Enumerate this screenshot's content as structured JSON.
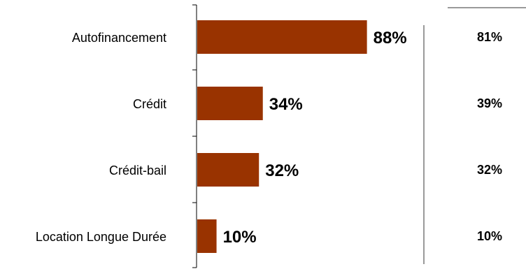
{
  "chart_data": {
    "type": "bar",
    "orientation": "horizontal",
    "categories": [
      "Autofinancement",
      "Crédit",
      "Crédit-bail",
      "Location Longue Durée"
    ],
    "series": [
      {
        "values": [
          88,
          34,
          32,
          10
        ],
        "labels": [
          "88%",
          "34%",
          "32%",
          "10%"
        ],
        "color": "#993300"
      }
    ],
    "comparison_values": [
      81,
      39,
      32,
      10
    ],
    "comparison_labels": [
      "81%",
      "39%",
      "32%",
      "10%"
    ],
    "xlim": [
      0,
      100
    ],
    "grid": false,
    "legend": "none"
  }
}
